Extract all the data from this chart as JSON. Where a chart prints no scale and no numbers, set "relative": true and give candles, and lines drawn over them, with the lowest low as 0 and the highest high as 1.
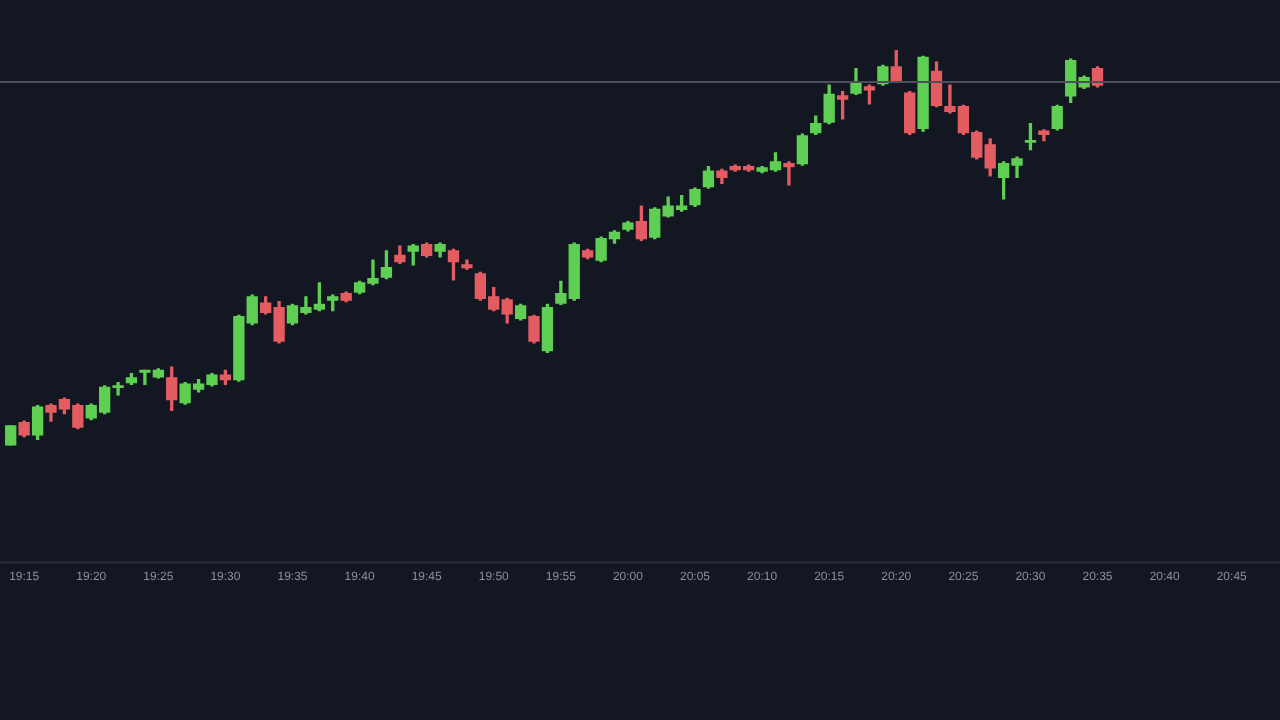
{
  "chart_data": {
    "type": "candlestick",
    "relative": true,
    "grid": false,
    "legend": false,
    "xlim": [
      19.22,
      20.81
    ],
    "xticks": [
      {
        "value": 19.25,
        "label": "19:15"
      },
      {
        "value": 19.3333,
        "label": "19:20"
      },
      {
        "value": 19.4167,
        "label": "19:25"
      },
      {
        "value": 19.5,
        "label": "19:30"
      },
      {
        "value": 19.5833,
        "label": "19:35"
      },
      {
        "value": 19.6667,
        "label": "19:40"
      },
      {
        "value": 19.75,
        "label": "19:45"
      },
      {
        "value": 19.8333,
        "label": "19:50"
      },
      {
        "value": 19.9167,
        "label": "19:55"
      },
      {
        "value": 20,
        "label": "20:00"
      },
      {
        "value": 20.0833,
        "label": "20:05"
      },
      {
        "value": 20.1667,
        "label": "20:10"
      },
      {
        "value": 20.25,
        "label": "20:15"
      },
      {
        "value": 20.3333,
        "label": "20:20"
      },
      {
        "value": 20.4167,
        "label": "20:25"
      },
      {
        "value": 20.5,
        "label": "20:30"
      },
      {
        "value": 20.5833,
        "label": "20:35"
      },
      {
        "value": 20.6667,
        "label": "20:40"
      },
      {
        "value": 20.75,
        "label": "20:45"
      }
    ],
    "x": [
      19.2333,
      19.25,
      19.2667,
      19.2833,
      19.3,
      19.3167,
      19.3333,
      19.35,
      19.3667,
      19.3833,
      19.4,
      19.4167,
      19.4333,
      19.45,
      19.4667,
      19.4833,
      19.5,
      19.5167,
      19.5333,
      19.55,
      19.5667,
      19.5833,
      19.6,
      19.6167,
      19.6333,
      19.65,
      19.6667,
      19.6833,
      19.7,
      19.7167,
      19.7333,
      19.75,
      19.7667,
      19.7833,
      19.8,
      19.8167,
      19.8333,
      19.85,
      19.8667,
      19.8833,
      19.9,
      19.9167,
      19.9333,
      19.95,
      19.9667,
      19.9833,
      20,
      20.0167,
      20.0333,
      20.05,
      20.0667,
      20.0833,
      20.1,
      20.1167,
      20.1333,
      20.15,
      20.1667,
      20.1833,
      20.2,
      20.2167,
      20.2333,
      20.25,
      20.2667,
      20.2833,
      20.3,
      20.3167,
      20.3333,
      20.35,
      20.3667,
      20.3833,
      20.4,
      20.4167,
      20.4333,
      20.45,
      20.4667,
      20.4833,
      20.5,
      20.5167,
      20.5333,
      20.55,
      20.5667,
      20.5833
    ],
    "ohlc": [
      [
        0,
        0.05,
        0,
        0.05
      ],
      [
        0.058,
        0.062,
        0.023,
        0.027
      ],
      [
        0.027,
        0.101,
        0.016,
        0.097
      ],
      [
        0.101,
        0.105,
        0.062,
        0.085
      ],
      [
        0.116,
        0.12,
        0.081,
        0.093
      ],
      [
        0.101,
        0.105,
        0.043,
        0.047
      ],
      [
        0.07,
        0.105,
        0.066,
        0.101
      ],
      [
        0.085,
        0.151,
        0.081,
        0.147
      ],
      [
        0.147,
        0.159,
        0.128,
        0.151
      ],
      [
        0.159,
        0.182,
        0.155,
        0.171
      ],
      [
        0.186,
        0.19,
        0.155,
        0.19
      ],
      [
        0.174,
        0.194,
        0.171,
        0.19
      ],
      [
        0.171,
        0.198,
        0.089,
        0.116
      ],
      [
        0.109,
        0.159,
        0.105,
        0.155
      ],
      [
        0.143,
        0.167,
        0.136,
        0.155
      ],
      [
        0.155,
        0.182,
        0.151,
        0.178
      ],
      [
        0.178,
        0.19,
        0.155,
        0.167
      ],
      [
        0.167,
        0.329,
        0.163,
        0.326
      ],
      [
        0.31,
        0.38,
        0.306,
        0.376
      ],
      [
        0.36,
        0.376,
        0.333,
        0.337
      ],
      [
        0.349,
        0.364,
        0.26,
        0.264
      ],
      [
        0.31,
        0.357,
        0.306,
        0.353
      ],
      [
        0.337,
        0.376,
        0.333,
        0.349
      ],
      [
        0.345,
        0.411,
        0.341,
        0.357
      ],
      [
        0.368,
        0.38,
        0.341,
        0.376
      ],
      [
        0.384,
        0.388,
        0.364,
        0.368
      ],
      [
        0.388,
        0.415,
        0.384,
        0.411
      ],
      [
        0.411,
        0.469,
        0.407,
        0.422
      ],
      [
        0.426,
        0.492,
        0.422,
        0.45
      ],
      [
        0.481,
        0.504,
        0.461,
        0.465
      ],
      [
        0.492,
        0.508,
        0.457,
        0.504
      ],
      [
        0.508,
        0.512,
        0.477,
        0.481
      ],
      [
        0.492,
        0.512,
        0.477,
        0.508
      ],
      [
        0.492,
        0.496,
        0.419,
        0.465
      ],
      [
        0.457,
        0.469,
        0.446,
        0.45
      ],
      [
        0.434,
        0.438,
        0.368,
        0.372
      ],
      [
        0.376,
        0.399,
        0.341,
        0.345
      ],
      [
        0.368,
        0.372,
        0.31,
        0.333
      ],
      [
        0.322,
        0.357,
        0.318,
        0.353
      ],
      [
        0.326,
        0.329,
        0.26,
        0.264
      ],
      [
        0.24,
        0.357,
        0.236,
        0.349
      ],
      [
        0.36,
        0.415,
        0.357,
        0.384
      ],
      [
        0.372,
        0.512,
        0.368,
        0.508
      ],
      [
        0.492,
        0.496,
        0.473,
        0.477
      ],
      [
        0.469,
        0.527,
        0.465,
        0.523
      ],
      [
        0.523,
        0.543,
        0.512,
        0.539
      ],
      [
        0.547,
        0.566,
        0.543,
        0.562
      ],
      [
        0.566,
        0.605,
        0.519,
        0.523
      ],
      [
        0.527,
        0.601,
        0.523,
        0.597
      ],
      [
        0.581,
        0.628,
        0.578,
        0.605
      ],
      [
        0.597,
        0.632,
        0.593,
        0.605
      ],
      [
        0.609,
        0.651,
        0.605,
        0.647
      ],
      [
        0.655,
        0.705,
        0.651,
        0.694
      ],
      [
        0.694,
        0.698,
        0.663,
        0.678
      ],
      [
        0.705,
        0.709,
        0.694,
        0.698
      ],
      [
        0.705,
        0.709,
        0.694,
        0.698
      ],
      [
        0.694,
        0.705,
        0.69,
        0.702
      ],
      [
        0.698,
        0.74,
        0.694,
        0.717
      ],
      [
        0.713,
        0.717,
        0.659,
        0.705
      ],
      [
        0.713,
        0.787,
        0.709,
        0.783
      ],
      [
        0.791,
        0.833,
        0.787,
        0.814
      ],
      [
        0.818,
        0.911,
        0.814,
        0.888
      ],
      [
        0.884,
        0.895,
        0.826,
        0.876
      ],
      [
        0.891,
        0.953,
        0.888,
        0.915
      ],
      [
        0.907,
        0.911,
        0.864,
        0.899
      ],
      [
        0.915,
        0.961,
        0.911,
        0.957
      ],
      [
        0.957,
        1,
        0.919,
        0.922
      ],
      [
        0.891,
        0.895,
        0.787,
        0.791
      ],
      [
        0.802,
        0.984,
        0.795,
        0.981
      ],
      [
        0.946,
        0.969,
        0.857,
        0.86
      ],
      [
        0.857,
        0.911,
        0.841,
        0.845
      ],
      [
        0.857,
        0.86,
        0.787,
        0.791
      ],
      [
        0.791,
        0.795,
        0.725,
        0.729
      ],
      [
        0.76,
        0.775,
        0.682,
        0.702
      ],
      [
        0.678,
        0.717,
        0.624,
        0.713
      ],
      [
        0.709,
        0.729,
        0.678,
        0.725
      ],
      [
        0.767,
        0.814,
        0.748,
        0.771
      ],
      [
        0.795,
        0.798,
        0.771,
        0.787
      ],
      [
        0.802,
        0.86,
        0.798,
        0.857
      ],
      [
        0.884,
        0.977,
        0.868,
        0.973
      ],
      [
        0.907,
        0.934,
        0.903,
        0.93
      ],
      [
        0.953,
        0.957,
        0.907,
        0.911
      ]
    ],
    "colors": [
      "#5fcf53",
      "#e25c62",
      "#5fcf53",
      "#e25c62",
      "#e25c62",
      "#e25c62",
      "#5fcf53",
      "#5fcf53",
      "#5fcf53",
      "#5fcf53",
      "#5fcf53",
      "#5fcf53",
      "#e25c62",
      "#5fcf53",
      "#5fcf53",
      "#5fcf53",
      "#e25c62",
      "#5fcf53",
      "#5fcf53",
      "#e25c62",
      "#e25c62",
      "#5fcf53",
      "#5fcf53",
      "#5fcf53",
      "#5fcf53",
      "#e25c62",
      "#5fcf53",
      "#5fcf53",
      "#5fcf53",
      "#e25c62",
      "#5fcf53",
      "#e25c62",
      "#5fcf53",
      "#e25c62",
      "#e25c62",
      "#e25c62",
      "#e25c62",
      "#e25c62",
      "#5fcf53",
      "#e25c62",
      "#5fcf53",
      "#5fcf53",
      "#5fcf53",
      "#e25c62",
      "#5fcf53",
      "#5fcf53",
      "#5fcf53",
      "#e25c62",
      "#5fcf53",
      "#5fcf53",
      "#5fcf53",
      "#5fcf53",
      "#5fcf53",
      "#e25c62",
      "#e25c62",
      "#e25c62",
      "#5fcf53",
      "#5fcf53",
      "#e25c62",
      "#5fcf53",
      "#5fcf53",
      "#5fcf53",
      "#e25c62",
      "#5fcf53",
      "#e25c62",
      "#5fcf53",
      "#e25c62",
      "#e25c62",
      "#5fcf53",
      "#e25c62",
      "#e25c62",
      "#e25c62",
      "#e25c62",
      "#e25c62",
      "#5fcf53",
      "#5fcf53",
      "#5fcf53",
      "#e25c62",
      "#5fcf53",
      "#5fcf53",
      "#5fcf53",
      "#e25c62"
    ],
    "ref_lines": [
      {
        "axis": "y",
        "value": 0.919,
        "color": "#4b505c",
        "line_style": "solid"
      }
    ]
  }
}
